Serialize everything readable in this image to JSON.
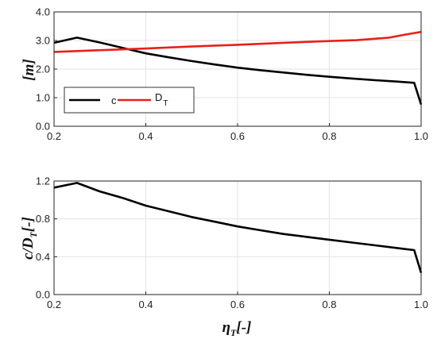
{
  "chart_data": [
    {
      "type": "line",
      "ylabel": "[m]",
      "xlim": [
        0.2,
        1.0
      ],
      "ylim": [
        0.0,
        4.0
      ],
      "xticks": [
        "0.2",
        "0.4",
        "0.6",
        "0.8",
        "1.0"
      ],
      "yticks": [
        "0.0",
        "1.0",
        "2.0",
        "3.0",
        "4.0"
      ],
      "xtick_values": [
        0.2,
        0.4,
        0.6,
        0.8,
        1.0
      ],
      "ytick_values": [
        0.0,
        1.0,
        2.0,
        3.0,
        4.0
      ],
      "grid": true,
      "legend_position": "bottom-left",
      "series": [
        {
          "name": "c",
          "color": "#000000",
          "x": [
            0.2,
            0.25,
            0.3,
            0.35,
            0.4,
            0.45,
            0.5,
            0.55,
            0.6,
            0.65,
            0.7,
            0.75,
            0.8,
            0.85,
            0.9,
            0.95,
            0.985,
            1.0
          ],
          "y": [
            2.92,
            3.1,
            2.93,
            2.74,
            2.55,
            2.41,
            2.28,
            2.16,
            2.05,
            1.96,
            1.88,
            1.8,
            1.73,
            1.67,
            1.61,
            1.56,
            1.52,
            0.76
          ]
        },
        {
          "name": "D",
          "subscript": "T",
          "color": "#e8201a",
          "x": [
            0.2,
            0.3,
            0.4,
            0.5,
            0.6,
            0.7,
            0.8,
            0.86,
            0.93,
            0.97,
            1.0
          ],
          "y": [
            2.6,
            2.66,
            2.72,
            2.79,
            2.85,
            2.92,
            2.98,
            3.01,
            3.1,
            3.22,
            3.3
          ]
        }
      ]
    },
    {
      "type": "line",
      "ylabel": "c/D",
      "ylabel_sub": "T",
      "ylabel_suffix": "[-]",
      "xlabel": "η",
      "xlabel_sub": "T",
      "xlabel_suffix": "[-]",
      "xlim": [
        0.2,
        1.0
      ],
      "ylim": [
        0.0,
        1.2
      ],
      "xticks": [
        "0.2",
        "0.4",
        "0.6",
        "0.8",
        "1.0"
      ],
      "yticks": [
        "0.0",
        "0.4",
        "0.8",
        "1.2"
      ],
      "xtick_values": [
        0.2,
        0.4,
        0.6,
        0.8,
        1.0
      ],
      "ytick_values": [
        0.0,
        0.4,
        0.8,
        1.2
      ],
      "grid": true,
      "series": [
        {
          "color": "#000000",
          "x": [
            0.2,
            0.25,
            0.3,
            0.35,
            0.4,
            0.45,
            0.5,
            0.55,
            0.6,
            0.65,
            0.7,
            0.75,
            0.8,
            0.85,
            0.9,
            0.95,
            0.985,
            1.0
          ],
          "y": [
            1.13,
            1.18,
            1.09,
            1.02,
            0.94,
            0.88,
            0.82,
            0.77,
            0.72,
            0.68,
            0.64,
            0.61,
            0.58,
            0.55,
            0.52,
            0.49,
            0.47,
            0.23
          ]
        }
      ]
    }
  ]
}
